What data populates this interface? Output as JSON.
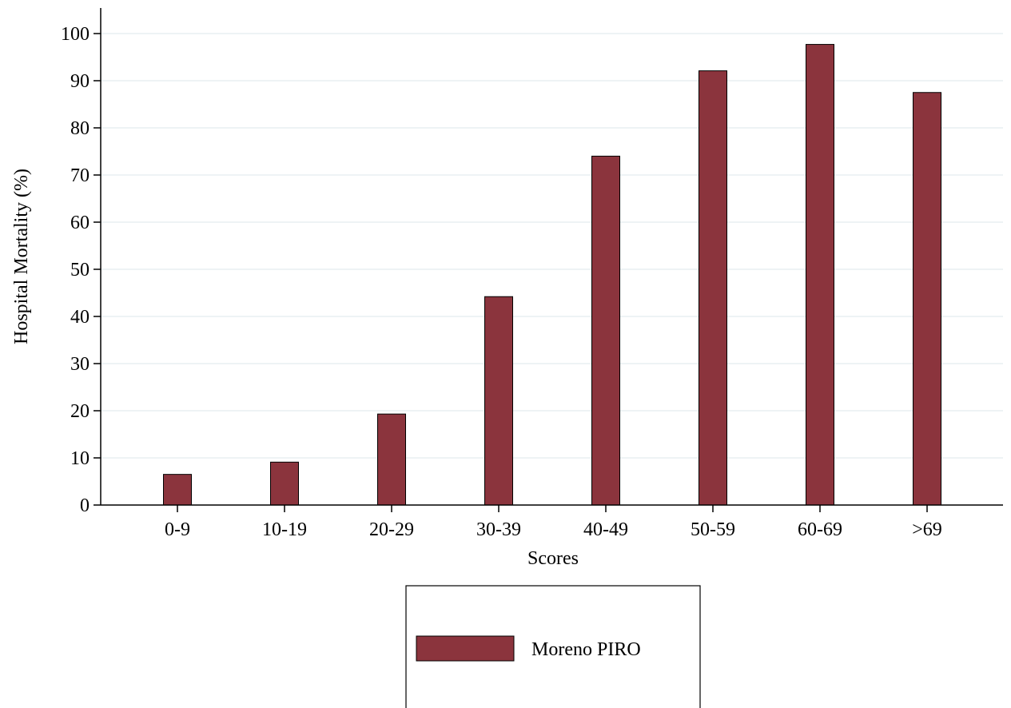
{
  "chart_data": {
    "type": "bar",
    "title": "",
    "xlabel": "Scores",
    "ylabel": "Hospital Mortality (%)",
    "categories": [
      "0-9",
      "10-19",
      "20-29",
      "30-39",
      "40-49",
      "50-59",
      "60-69",
      ">69"
    ],
    "series": [
      {
        "name": "Moreno PIRO",
        "values": [
          6.5,
          9.1,
          19.3,
          44.2,
          74.0,
          92.1,
          97.7,
          87.5
        ],
        "color": "#8b343d"
      }
    ],
    "ylim": [
      0,
      100
    ],
    "yticks": [
      0,
      10,
      20,
      30,
      40,
      50,
      60,
      70,
      80,
      90,
      100
    ],
    "grid": true,
    "legend_position": "bottom"
  }
}
